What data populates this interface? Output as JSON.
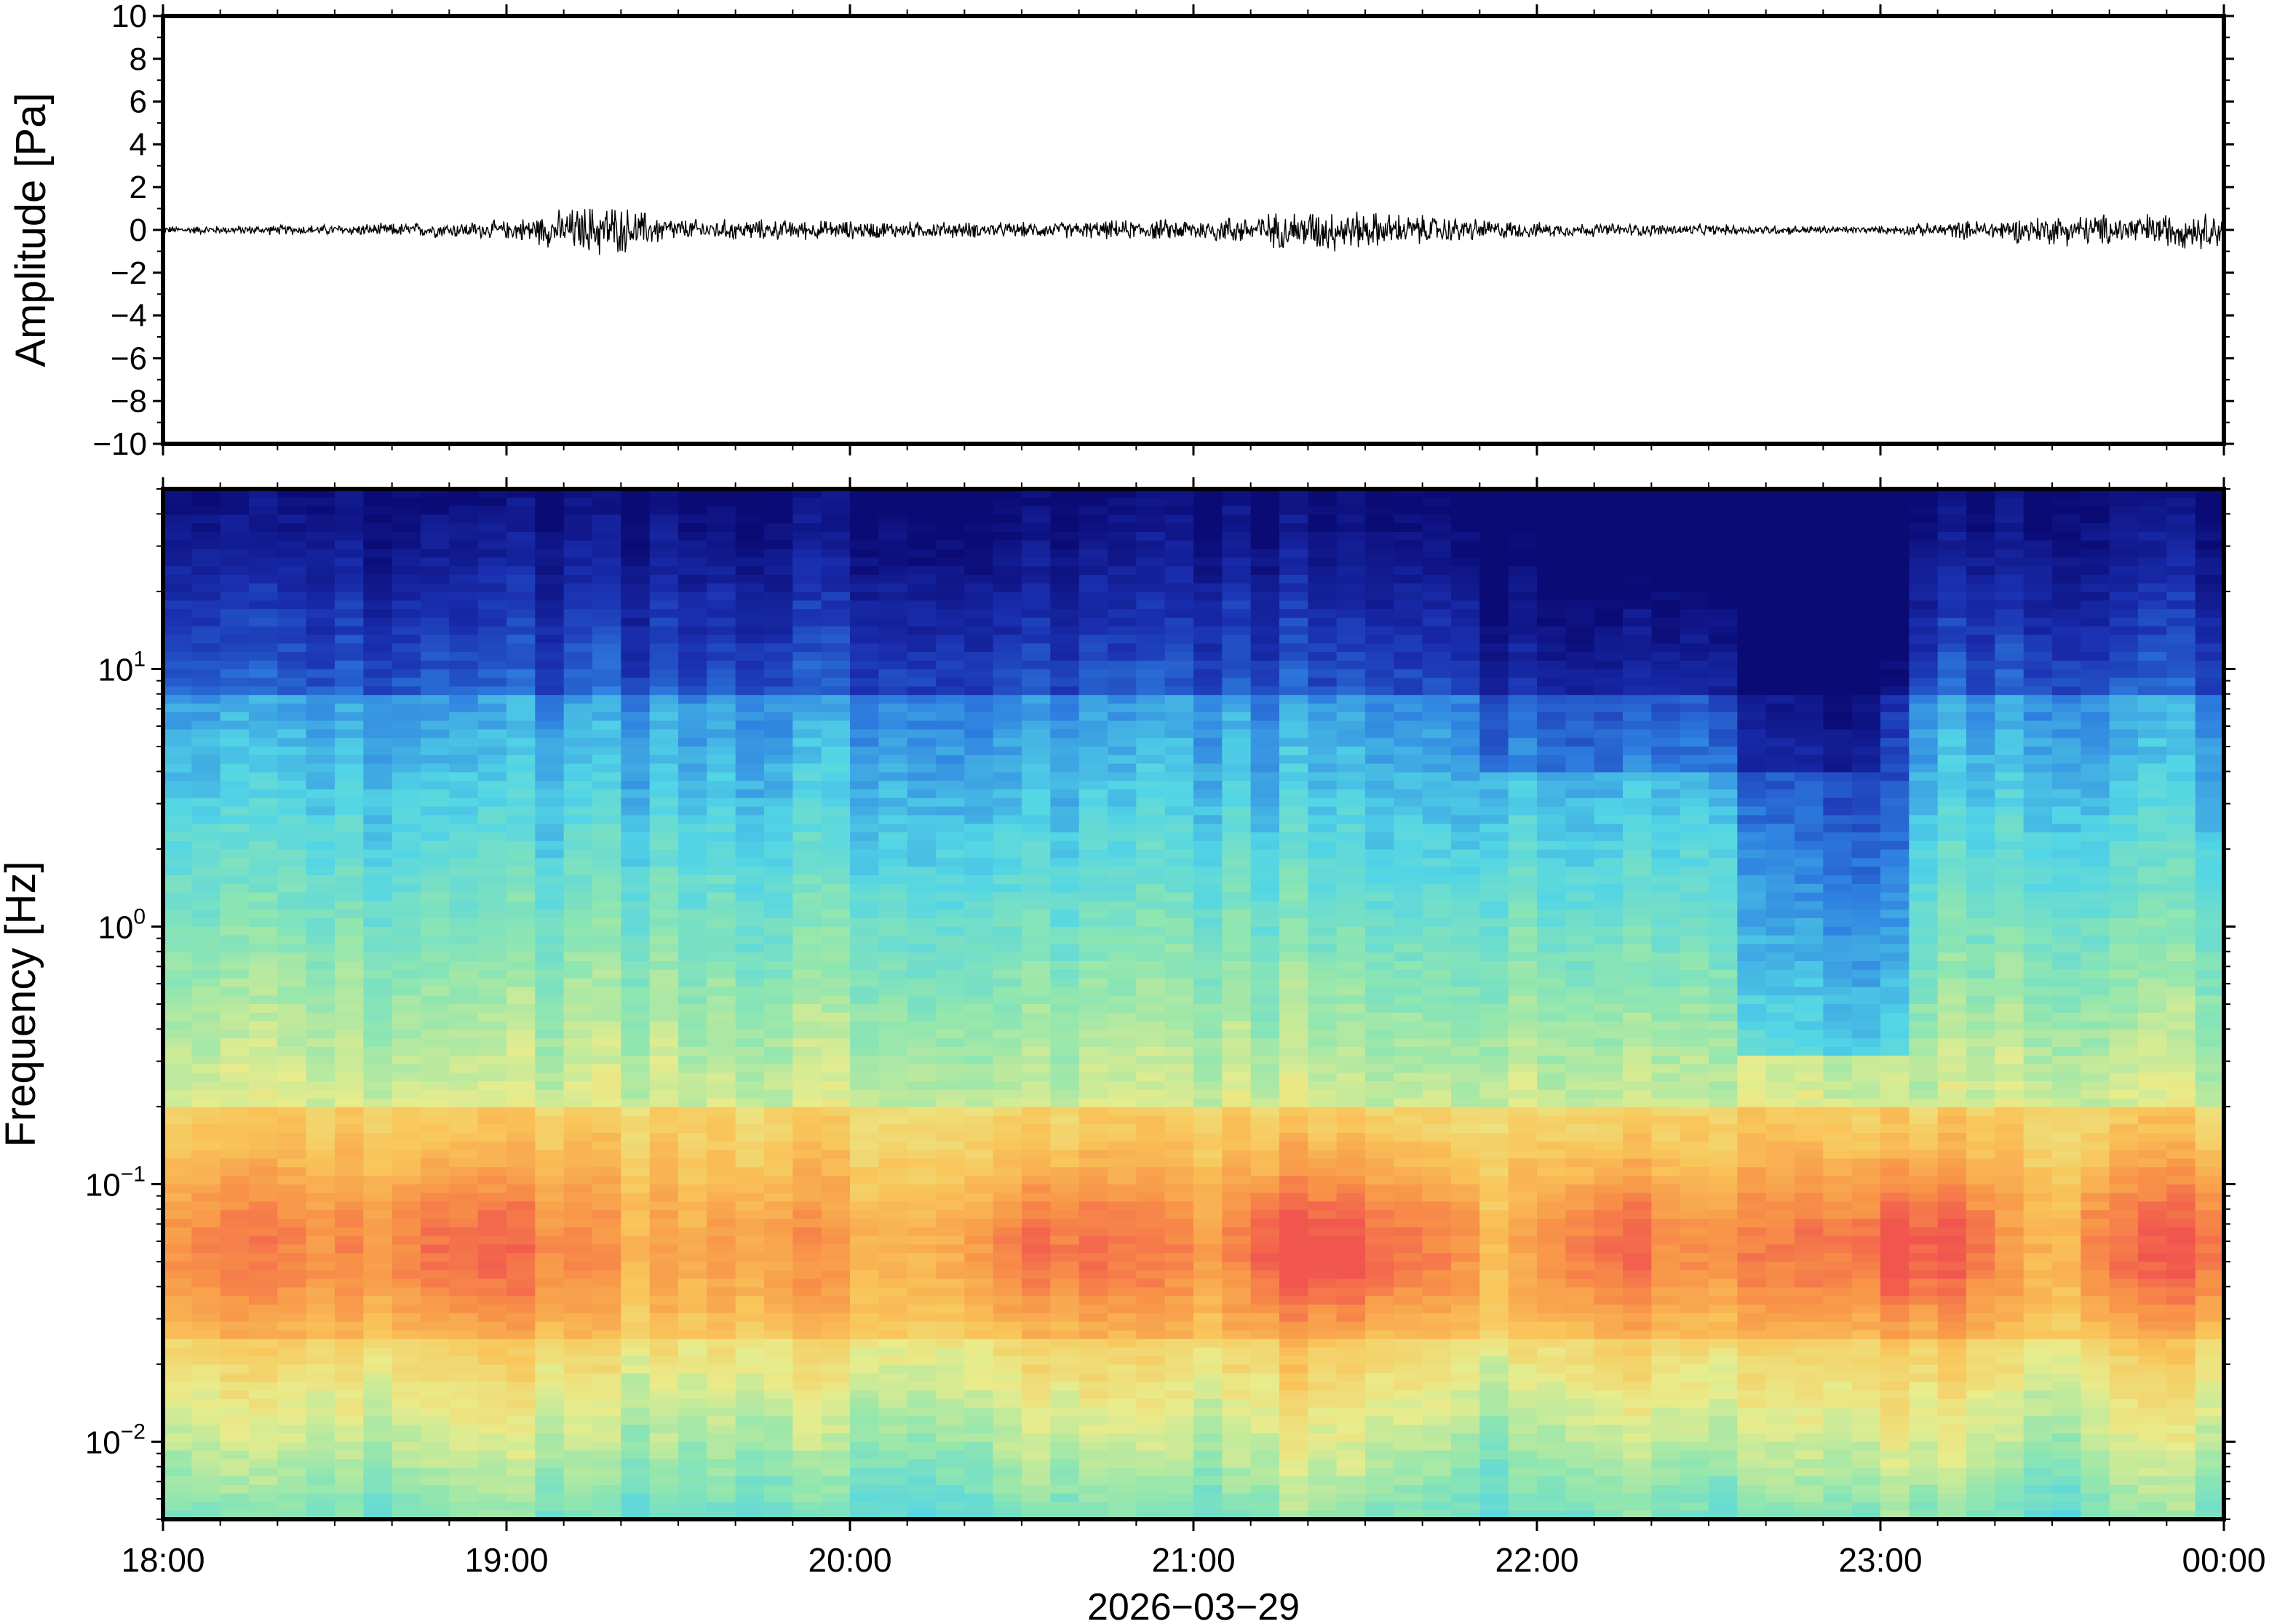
{
  "chart_data": [
    {
      "type": "line",
      "ylabel": "Amplitude [Pa]",
      "xlabel": "",
      "ylim": [
        -10,
        10
      ],
      "yticks": [
        "10",
        "8",
        "6",
        "4",
        "2",
        "0",
        "−2",
        "−4",
        "−6",
        "−8",
        "−10"
      ],
      "ytick_values": [
        10,
        8,
        6,
        4,
        2,
        0,
        -2,
        -4,
        -6,
        -8,
        -10
      ],
      "xlim_hours": [
        18,
        24
      ],
      "trace_color": "#000000",
      "series": [
        {
          "x_hours": [
            18.0,
            18.5,
            19.0,
            19.28,
            19.5,
            20.0,
            20.5,
            21.0,
            21.4,
            21.5,
            22.0,
            22.5,
            23.0,
            23.5,
            24.0
          ],
          "envelope_pa": [
            0.2,
            0.3,
            0.5,
            1.5,
            0.6,
            0.5,
            0.4,
            0.6,
            1.2,
            1.0,
            0.4,
            0.3,
            0.2,
            0.8,
            1.0
          ]
        }
      ]
    },
    {
      "type": "heatmap",
      "ylabel": "Frequency [Hz]",
      "xlabel": "2026−03−29",
      "yscale": "log",
      "ylim": [
        0.005,
        50
      ],
      "yticks": [
        {
          "value": 10,
          "base": "10",
          "exp": "1"
        },
        {
          "value": 1,
          "base": "10",
          "exp": "0"
        },
        {
          "value": 0.1,
          "base": "10",
          "exp": "−1"
        },
        {
          "value": 0.01,
          "base": "10",
          "exp": "−2"
        }
      ],
      "xticks": [
        "18:00",
        "19:00",
        "20:00",
        "21:00",
        "22:00",
        "23:00",
        "00:00"
      ],
      "xtick_hours": [
        18,
        19,
        20,
        21,
        22,
        23,
        24
      ],
      "colormap": [
        "#0b0b76",
        "#1a2fb0",
        "#2e7fe0",
        "#52d5e6",
        "#8fe6b0",
        "#e8ec8c",
        "#f9c55a",
        "#f89548",
        "#f1564e"
      ],
      "time_columns": 72,
      "dark_notch_hours": [
        22.6,
        23.1
      ],
      "dark_notch_floor_hz": 0.5
    }
  ]
}
